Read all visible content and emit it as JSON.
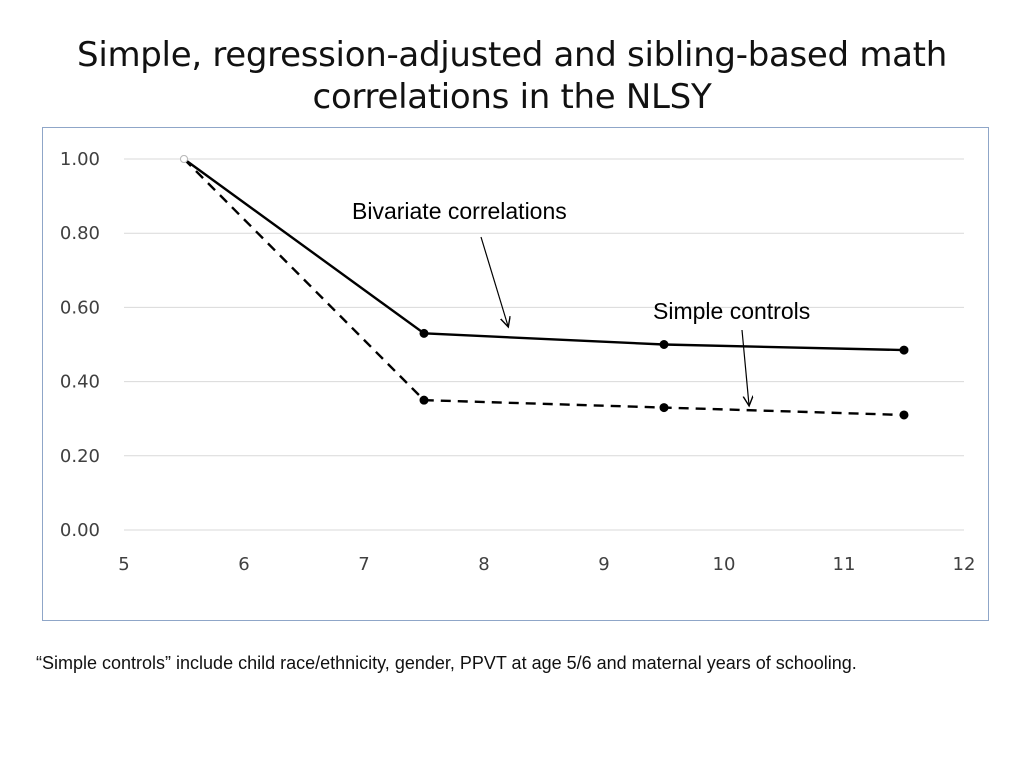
{
  "title_line1": "Simple, regression-adjusted and sibling-based math",
  "title_line2": "correlations in the NLSY",
  "footnote": "“Simple controls” include child race/ethnicity, gender, PPVT at age 5/6  and maternal years of schooling.",
  "colors": {
    "series": "#000000",
    "grid": "#d9d9d9",
    "frame": "#8fa6c8",
    "text": "#404040"
  },
  "chart_data": {
    "type": "line",
    "title": "Simple, regression-adjusted and sibling-based math correlations in the NLSY",
    "xlabel": "",
    "ylabel": "",
    "xlim": [
      5,
      12
    ],
    "ylim": [
      0,
      1
    ],
    "x_ticks": [
      5,
      6,
      7,
      8,
      9,
      10,
      11,
      12
    ],
    "x_tick_labels": [
      "5",
      "6",
      "7",
      "8",
      "9",
      "10",
      "11",
      "12"
    ],
    "y_ticks": [
      0,
      0.2,
      0.4,
      0.6,
      0.8,
      1.0
    ],
    "y_tick_labels": [
      "0.00",
      "0.20",
      "0.40",
      "0.60",
      "0.80",
      "1.00"
    ],
    "grid": true,
    "series": [
      {
        "name": "Bivariate correlations",
        "style": "solid",
        "x": [
          5.5,
          7.5,
          9.5,
          11.5
        ],
        "values": [
          1.0,
          0.53,
          0.5,
          0.485
        ]
      },
      {
        "name": "Simple controls",
        "style": "dashed",
        "x": [
          5.5,
          7.5,
          9.5,
          11.5
        ],
        "values": [
          1.0,
          0.35,
          0.33,
          0.31
        ]
      }
    ],
    "annotations": [
      {
        "text": "Bivariate correlations",
        "target_series": 0
      },
      {
        "text": "Simple controls",
        "target_series": 1
      }
    ]
  }
}
